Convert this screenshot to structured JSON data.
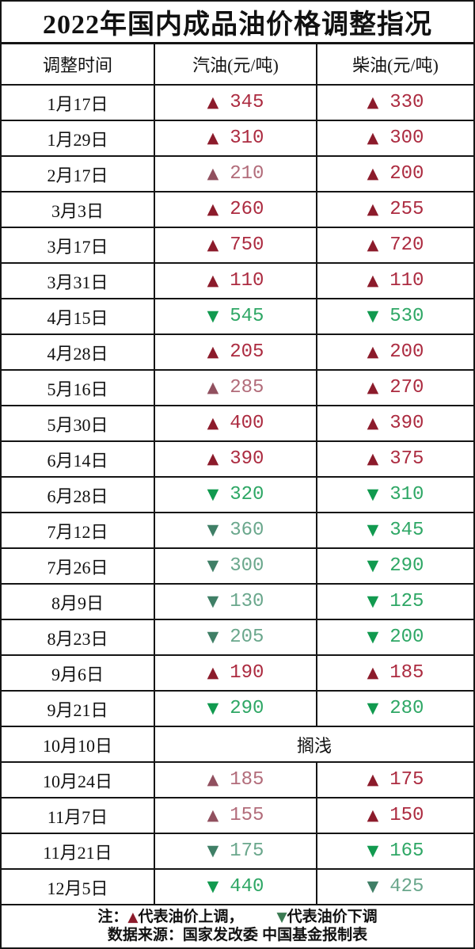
{
  "title": "2022年国内成品油价格调整指况",
  "icons": {
    "up": "▲",
    "down": "▼"
  },
  "colors": {
    "border": "#151515",
    "up_strong": {
      "arrow": "#8c1b2b",
      "text": "#ac2b40"
    },
    "up_soft": {
      "arrow": "#91505f",
      "text": "#b26c7a"
    },
    "down_strong": {
      "arrow": "#119a4f",
      "text": "#2ea765"
    },
    "down_soft": {
      "arrow": "#3f7f66",
      "text": "#6aa78c"
    },
    "note_up": "#8c1b2b",
    "note_down": "#3a7a52"
  },
  "table": {
    "headers": [
      "调整时间",
      "汽油(元/吨)",
      "柴油(元/吨)"
    ],
    "rows": [
      {
        "date": "1月17日",
        "gasoline": {
          "dir": "up",
          "tone": "strong",
          "value": "345"
        },
        "diesel": {
          "dir": "up",
          "tone": "strong",
          "value": "330"
        }
      },
      {
        "date": "1月29日",
        "gasoline": {
          "dir": "up",
          "tone": "strong",
          "value": "310"
        },
        "diesel": {
          "dir": "up",
          "tone": "strong",
          "value": "300"
        }
      },
      {
        "date": "2月17日",
        "gasoline": {
          "dir": "up",
          "tone": "soft",
          "value": "210"
        },
        "diesel": {
          "dir": "up",
          "tone": "strong",
          "value": "200"
        }
      },
      {
        "date": "3月3日",
        "gasoline": {
          "dir": "up",
          "tone": "strong",
          "value": "260"
        },
        "diesel": {
          "dir": "up",
          "tone": "strong",
          "value": "255"
        }
      },
      {
        "date": "3月17日",
        "gasoline": {
          "dir": "up",
          "tone": "strong",
          "value": "750"
        },
        "diesel": {
          "dir": "up",
          "tone": "strong",
          "value": "720"
        }
      },
      {
        "date": "3月31日",
        "gasoline": {
          "dir": "up",
          "tone": "strong",
          "value": "110"
        },
        "diesel": {
          "dir": "up",
          "tone": "strong",
          "value": "110"
        }
      },
      {
        "date": "4月15日",
        "gasoline": {
          "dir": "down",
          "tone": "strong",
          "value": "545"
        },
        "diesel": {
          "dir": "down",
          "tone": "strong",
          "value": "530"
        }
      },
      {
        "date": "4月28日",
        "gasoline": {
          "dir": "up",
          "tone": "strong",
          "value": "205"
        },
        "diesel": {
          "dir": "up",
          "tone": "strong",
          "value": "200"
        }
      },
      {
        "date": "5月16日",
        "gasoline": {
          "dir": "up",
          "tone": "soft",
          "value": "285"
        },
        "diesel": {
          "dir": "up",
          "tone": "strong",
          "value": "270"
        }
      },
      {
        "date": "5月30日",
        "gasoline": {
          "dir": "up",
          "tone": "strong",
          "value": "400"
        },
        "diesel": {
          "dir": "up",
          "tone": "strong",
          "value": "390"
        }
      },
      {
        "date": "6月14日",
        "gasoline": {
          "dir": "up",
          "tone": "strong",
          "value": "390"
        },
        "diesel": {
          "dir": "up",
          "tone": "strong",
          "value": "375"
        }
      },
      {
        "date": "6月28日",
        "gasoline": {
          "dir": "down",
          "tone": "strong",
          "value": "320"
        },
        "diesel": {
          "dir": "down",
          "tone": "strong",
          "value": "310"
        }
      },
      {
        "date": "7月12日",
        "gasoline": {
          "dir": "down",
          "tone": "soft",
          "value": "360"
        },
        "diesel": {
          "dir": "down",
          "tone": "strong",
          "value": "345"
        }
      },
      {
        "date": "7月26日",
        "gasoline": {
          "dir": "down",
          "tone": "soft",
          "value": "300"
        },
        "diesel": {
          "dir": "down",
          "tone": "strong",
          "value": "290"
        }
      },
      {
        "date": "8月9日",
        "gasoline": {
          "dir": "down",
          "tone": "soft",
          "value": "130"
        },
        "diesel": {
          "dir": "down",
          "tone": "strong",
          "value": "125"
        }
      },
      {
        "date": "8月23日",
        "gasoline": {
          "dir": "down",
          "tone": "soft",
          "value": "205"
        },
        "diesel": {
          "dir": "down",
          "tone": "strong",
          "value": "200"
        }
      },
      {
        "date": "9月6日",
        "gasoline": {
          "dir": "up",
          "tone": "strong",
          "value": "190"
        },
        "diesel": {
          "dir": "up",
          "tone": "strong",
          "value": "185"
        }
      },
      {
        "date": "9月21日",
        "gasoline": {
          "dir": "down",
          "tone": "strong",
          "value": "290"
        },
        "diesel": {
          "dir": "down",
          "tone": "strong",
          "value": "280"
        }
      },
      {
        "date": "10月10日",
        "merged_text": "搁浅"
      },
      {
        "date": "10月24日",
        "gasoline": {
          "dir": "up",
          "tone": "soft",
          "value": "185"
        },
        "diesel": {
          "dir": "up",
          "tone": "strong",
          "value": "175"
        }
      },
      {
        "date": "11月7日",
        "gasoline": {
          "dir": "up",
          "tone": "soft",
          "value": "155"
        },
        "diesel": {
          "dir": "up",
          "tone": "strong",
          "value": "150"
        }
      },
      {
        "date": "11月21日",
        "gasoline": {
          "dir": "down",
          "tone": "soft",
          "value": "175"
        },
        "diesel": {
          "dir": "down",
          "tone": "strong",
          "value": "165"
        }
      },
      {
        "date": "12月5日",
        "gasoline": {
          "dir": "down",
          "tone": "strong",
          "value": "440"
        },
        "diesel": {
          "dir": "down",
          "tone": "soft",
          "value": "425"
        }
      }
    ]
  },
  "footer": {
    "note_prefix": "注：",
    "up_label": "代表油价上调，",
    "down_label": "代表油价下调",
    "source": "数据来源：国家发改委  中国基金报制表"
  }
}
